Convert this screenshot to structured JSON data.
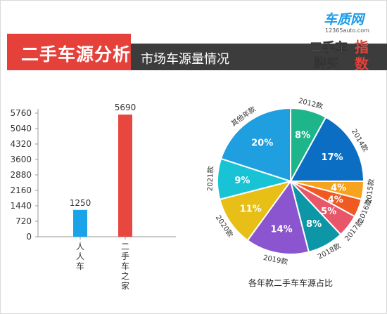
{
  "header": {
    "main_title": "二手车源分析",
    "subtitle": "市场车源量情况",
    "logo_top": "车质网",
    "logo_url": "12365auto.com",
    "logo_line1": "二手车",
    "logo_line2": "购买",
    "logo_fang": "指",
    "logo_fang2": "数"
  },
  "colors": {
    "header_red": "#e5413a",
    "header_dark": "#3c3c3c",
    "bar_blue": "#1aa3e8",
    "bar_red": "#e8473f"
  },
  "chart_data": [
    {
      "type": "bar",
      "categories": [
        "人人车",
        "二手车之家"
      ],
      "values": [
        1250,
        5690
      ],
      "colors": [
        "#1aa3e8",
        "#e8473f"
      ],
      "yticks": [
        "0",
        "720",
        "1440",
        "2160",
        "2880",
        "3600",
        "4320",
        "5040",
        "5760"
      ],
      "ylim": [
        0,
        5760
      ],
      "grid": false
    },
    {
      "type": "pie",
      "title": "各年款二手车车源占比",
      "slices": [
        {
          "label": "2012款",
          "value": 8,
          "text": "8%",
          "color": "#1fb58b"
        },
        {
          "label": "2014款",
          "value": 17,
          "text": "17%",
          "color": "#0b6ec2"
        },
        {
          "label": "2015款",
          "value": 4,
          "text": "4%",
          "color": "#f7a320"
        },
        {
          "label": "2016款",
          "value": 4,
          "text": "4%",
          "color": "#f05a22"
        },
        {
          "label": "2017款",
          "value": 5,
          "text": "5%",
          "color": "#e8566a"
        },
        {
          "label": "2018款",
          "value": 8,
          "text": "8%",
          "color": "#0d97a6"
        },
        {
          "label": "2019款",
          "value": 14,
          "text": "14%",
          "color": "#8a55cf"
        },
        {
          "label": "2020款",
          "value": 11,
          "text": "11%",
          "color": "#e7bf16"
        },
        {
          "label": "2021款",
          "value": 9,
          "text": "9%",
          "color": "#19c3d6"
        },
        {
          "label": "其他年款",
          "value": 20,
          "text": "20%",
          "color": "#1f9ee0"
        }
      ]
    }
  ]
}
